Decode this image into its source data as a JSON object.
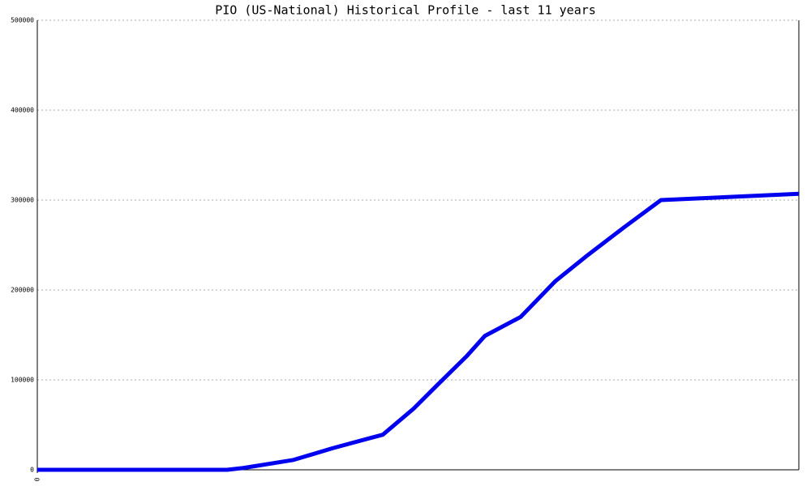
{
  "chart_data": {
    "type": "line",
    "title": "PIO (US-National) Historical Profile - last 11 years",
    "x": [
      0,
      234,
      254,
      316,
      364,
      409,
      426,
      464,
      494,
      529,
      552,
      596,
      639,
      679,
      724,
      769,
      939
    ],
    "series": [
      {
        "name": "PIO",
        "color": "#0000ee",
        "values": [
          0,
          0,
          2000,
          11000,
          24000,
          35000,
          39000,
          68000,
          95000,
          126000,
          149000,
          170000,
          210000,
          239000,
          270000,
          300000,
          307000
        ]
      }
    ],
    "xlim": [
      0,
      939
    ],
    "xticks": [
      0
    ],
    "ylim": [
      0,
      500000
    ],
    "yticks": [
      0,
      100000,
      200000,
      300000,
      400000,
      500000
    ],
    "grid": true
  }
}
